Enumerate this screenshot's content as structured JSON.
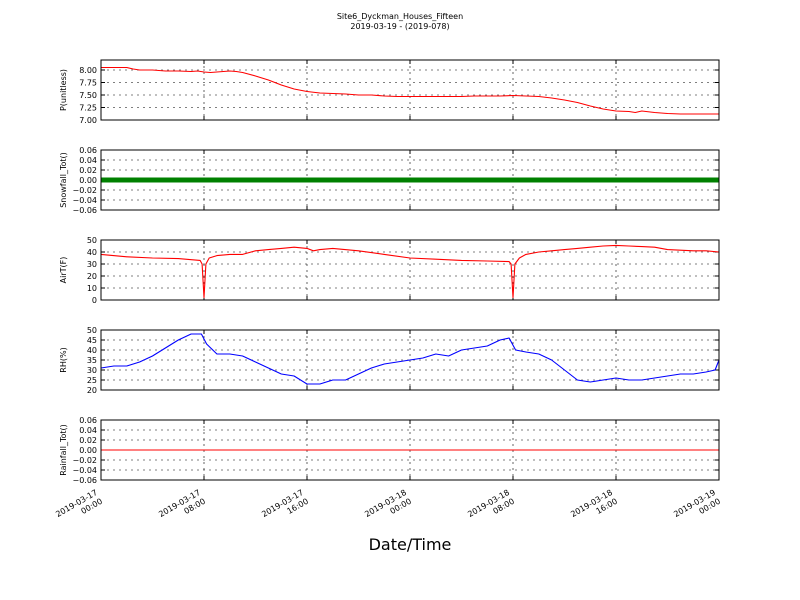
{
  "chart_data": {
    "type": "line",
    "title": "Site6_Dyckman_Houses_Fifteen",
    "subtitle": "2019-03-19 - (2019-078)",
    "xlabel": "Date/Time",
    "x_tick_labels": [
      [
        "2019-03-17",
        "00:00"
      ],
      [
        "2019-03-17",
        "08:00"
      ],
      [
        "2019-03-17",
        "16:00"
      ],
      [
        "2019-03-18",
        "00:00"
      ],
      [
        "2019-03-18",
        "08:00"
      ],
      [
        "2019-03-18",
        "16:00"
      ],
      [
        "2019-03-19",
        "00:00"
      ]
    ],
    "x_range_hours": [
      0,
      48
    ],
    "grid": true,
    "panels": [
      {
        "ylabel": "P(unitless)",
        "ylim": [
          7.0,
          8.2
        ],
        "yticks": [
          "7.00",
          "7.25",
          "7.50",
          "7.75",
          "8.00"
        ],
        "ytick_values": [
          7.0,
          7.25,
          7.5,
          7.75,
          8.0
        ],
        "color": "#ff0000",
        "style": "line",
        "x": [
          0,
          1,
          2,
          2.5,
          3,
          4,
          5,
          6,
          7,
          7.5,
          8,
          8.5,
          9,
          10,
          10.5,
          11,
          12,
          13,
          14,
          15,
          16,
          17,
          18,
          19,
          20,
          21,
          22,
          23,
          24,
          25,
          26,
          27,
          28,
          29,
          30,
          31,
          32,
          33,
          34,
          35,
          36,
          37,
          38,
          39,
          40,
          41,
          41.5,
          42,
          43,
          44,
          45,
          46,
          47,
          48
        ],
        "y": [
          8.05,
          8.05,
          8.05,
          8.02,
          8.0,
          8.0,
          7.98,
          7.98,
          7.97,
          7.98,
          7.96,
          7.95,
          7.96,
          7.98,
          7.97,
          7.95,
          7.88,
          7.8,
          7.7,
          7.62,
          7.57,
          7.54,
          7.53,
          7.52,
          7.5,
          7.5,
          7.48,
          7.47,
          7.47,
          7.47,
          7.47,
          7.47,
          7.47,
          7.48,
          7.48,
          7.48,
          7.49,
          7.48,
          7.47,
          7.44,
          7.4,
          7.35,
          7.28,
          7.22,
          7.18,
          7.17,
          7.15,
          7.18,
          7.15,
          7.13,
          7.12,
          7.12,
          7.12,
          7.12
        ]
      },
      {
        "ylabel": "Snowfall_Tot()",
        "ylim": [
          -0.06,
          0.06
        ],
        "yticks": [
          "−0.06",
          "−0.04",
          "−0.02",
          "0.00",
          "0.02",
          "0.04",
          "0.06"
        ],
        "ytick_values": [
          -0.06,
          -0.04,
          -0.02,
          0.0,
          0.02,
          0.04,
          0.06
        ],
        "color": "#008000",
        "style": "markers",
        "x": [
          0,
          48
        ],
        "y": [
          0.0,
          0.0
        ]
      },
      {
        "ylabel": "AirT(F)",
        "ylim": [
          0,
          50
        ],
        "yticks": [
          "0",
          "10",
          "20",
          "30",
          "40",
          "50"
        ],
        "ytick_values": [
          0,
          10,
          20,
          30,
          40,
          50
        ],
        "color": "#ff0000",
        "style": "line",
        "x": [
          0,
          2,
          4,
          6,
          7.7,
          7.85,
          8.0,
          8.15,
          8.4,
          9,
          10,
          11,
          12,
          13,
          14,
          15,
          16,
          16.5,
          17,
          18,
          20,
          22,
          24,
          26,
          28,
          30,
          31.7,
          31.85,
          32.0,
          32.15,
          32.5,
          33,
          34,
          35,
          36,
          37,
          38,
          39,
          40,
          41,
          42,
          43,
          44,
          45,
          46,
          47,
          48
        ],
        "y": [
          38,
          36,
          35,
          34.5,
          33,
          30,
          2,
          30,
          35,
          37,
          38,
          38,
          41,
          42,
          43,
          44,
          43,
          41,
          42,
          43,
          41,
          38,
          35,
          34,
          33,
          32.5,
          32,
          30,
          2,
          30,
          35,
          38,
          40,
          41,
          42,
          43,
          44,
          45,
          45.5,
          45,
          44.5,
          44,
          42,
          41.5,
          41,
          41,
          40
        ]
      },
      {
        "ylabel": "RH(%)",
        "ylim": [
          20,
          50
        ],
        "yticks": [
          "20",
          "25",
          "30",
          "35",
          "40",
          "45",
          "50"
        ],
        "ytick_values": [
          20,
          25,
          30,
          35,
          40,
          45,
          50
        ],
        "color": "#0000ff",
        "style": "line",
        "x": [
          0,
          1,
          2,
          3,
          4,
          5,
          6,
          7,
          7.8,
          8.2,
          9,
          10,
          11,
          12,
          13,
          14,
          15,
          16,
          17,
          18,
          19,
          20,
          21,
          22,
          23,
          24,
          25,
          26,
          27,
          28,
          29,
          30,
          31,
          31.7,
          32.2,
          33,
          34,
          35,
          36,
          37,
          38,
          39,
          40,
          41,
          42,
          43,
          44,
          45,
          46,
          47,
          47.7,
          48
        ],
        "y": [
          31,
          32,
          32,
          34,
          37,
          41,
          45,
          48,
          48,
          43,
          38,
          38,
          37,
          34,
          31,
          28,
          27,
          23,
          23,
          25,
          25,
          28,
          31,
          33,
          34,
          35,
          36,
          38,
          37,
          40,
          41,
          42,
          45,
          46,
          40,
          39,
          38,
          35,
          30,
          25,
          24,
          25,
          26,
          25,
          25,
          26,
          27,
          28,
          28,
          29,
          30,
          35
        ]
      },
      {
        "ylabel": "Rainfall_Tot()",
        "ylim": [
          -0.06,
          0.06
        ],
        "yticks": [
          "−0.06",
          "−0.04",
          "−0.02",
          "0.00",
          "0.02",
          "0.04",
          "0.06"
        ],
        "ytick_values": [
          -0.06,
          -0.04,
          -0.02,
          0.0,
          0.02,
          0.04,
          0.06
        ],
        "color": "#ff0000",
        "style": "line",
        "x": [
          0,
          48
        ],
        "y": [
          0.0,
          0.0
        ]
      }
    ]
  }
}
